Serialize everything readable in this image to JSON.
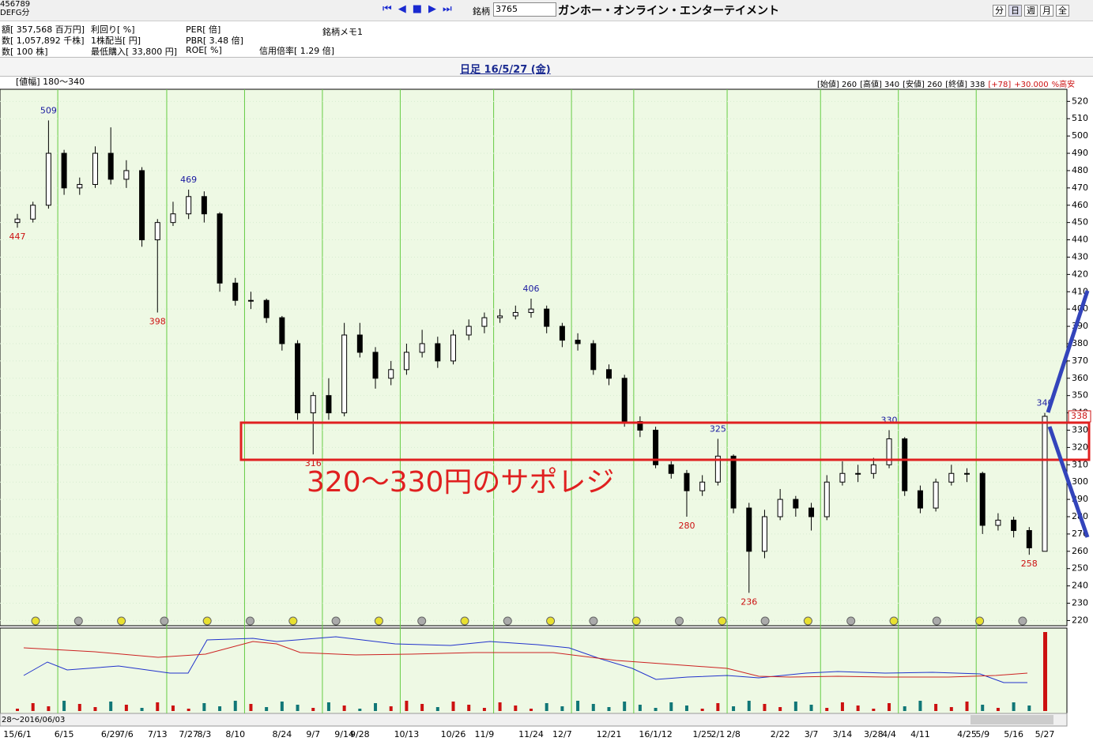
{
  "toolbar": {
    "counter": "456789",
    "counter_sub": "DEFG分",
    "symbol_label": "銘柄",
    "symbol": "3765",
    "company": "ガンホー・オンライン・エンターテイメント",
    "periods": [
      "分",
      "日",
      "週",
      "月",
      "全"
    ]
  },
  "info": {
    "rows": [
      [
        "額[ 357,568 百万円]",
        "利回り[ %]",
        "PER[ 倍]"
      ],
      [
        "数[ 1,057,892 千株]",
        "1株配当[ 円]",
        "PBR[ 3.48 倍]"
      ],
      [
        "数[ 100 株]",
        "最低購入[ 33,800 円]",
        "ROE[ %]"
      ]
    ],
    "memo": "銘柄メモ1",
    "margin_ratio": "信用倍率[ 1.29 倍]"
  },
  "chart_data": {
    "type": "candlestick",
    "title": "日足 16/5/27 (金)",
    "range_label": "[値幅] 180〜340",
    "ohlc_header": [
      "[始値] 260",
      "[高値] 340",
      "[安値] 260",
      "[終値] 338",
      "[+78]",
      "+30.000",
      "%高安"
    ],
    "annotation": "320〜330円のサポレジ",
    "scroll_label": "28〜2016/06/03",
    "ylim": [
      217,
      527
    ],
    "yticks": [
      220,
      230,
      240,
      250,
      260,
      270,
      280,
      290,
      300,
      310,
      320,
      330,
      340,
      350,
      360,
      370,
      380,
      390,
      400,
      410,
      420,
      430,
      440,
      450,
      460,
      470,
      480,
      490,
      500,
      510,
      520
    ],
    "categories": [
      "15/6/1",
      null,
      null,
      "6/15",
      null,
      null,
      "6/29",
      "7/6",
      null,
      "7/13",
      null,
      "7/27",
      "8/3",
      null,
      "8/10",
      null,
      null,
      "8/24",
      null,
      "9/7",
      null,
      "9/14",
      "9/28",
      null,
      null,
      "10/13",
      null,
      null,
      "10/26",
      null,
      "11/9",
      null,
      null,
      "11/24",
      null,
      "12/7",
      null,
      null,
      "12/21",
      null,
      null,
      "16/1/12",
      null,
      null,
      "1/25",
      "2/1",
      "2/8",
      null,
      null,
      "2/22",
      null,
      "3/7",
      null,
      "3/14",
      null,
      "3/28",
      "4/4",
      null,
      "4/11",
      null,
      null,
      "4/25",
      "5/9",
      null,
      "5/16",
      null,
      "5/27"
    ],
    "open": [
      450,
      452,
      460,
      490,
      470,
      472,
      490,
      475,
      480,
      440,
      450,
      455,
      465,
      455,
      415,
      405,
      405,
      395,
      380,
      340,
      350,
      340,
      385,
      375,
      360,
      365,
      375,
      380,
      370,
      385,
      390,
      395,
      396,
      398,
      400,
      390,
      382,
      380,
      365,
      360,
      335,
      330,
      310,
      305,
      295,
      300,
      315,
      285,
      260,
      280,
      290,
      285,
      280,
      300,
      305,
      305,
      310,
      325,
      295,
      285,
      300,
      305,
      305,
      275,
      278,
      272,
      260
    ],
    "high": [
      455,
      462,
      509,
      492,
      476,
      494,
      505,
      486,
      482,
      452,
      462,
      469,
      468,
      456,
      418,
      410,
      406,
      396,
      382,
      352,
      360,
      392,
      392,
      378,
      370,
      380,
      388,
      384,
      388,
      394,
      398,
      400,
      402,
      406,
      402,
      392,
      386,
      382,
      368,
      362,
      338,
      332,
      312,
      307,
      304,
      325,
      316,
      288,
      284,
      296,
      292,
      288,
      304,
      312,
      310,
      314,
      330,
      326,
      298,
      302,
      310,
      308,
      306,
      282,
      280,
      274,
      340
    ],
    "low": [
      447,
      450,
      458,
      466,
      466,
      470,
      472,
      470,
      436,
      398,
      448,
      452,
      450,
      410,
      402,
      400,
      392,
      376,
      336,
      316,
      336,
      338,
      372,
      354,
      356,
      362,
      372,
      366,
      368,
      382,
      386,
      392,
      394,
      395,
      386,
      378,
      376,
      362,
      356,
      332,
      326,
      308,
      302,
      280,
      292,
      298,
      282,
      236,
      256,
      278,
      280,
      272,
      278,
      298,
      300,
      302,
      308,
      292,
      282,
      283,
      298,
      300,
      270,
      272,
      268,
      258,
      260
    ],
    "close": [
      452,
      460,
      490,
      470,
      472,
      490,
      475,
      480,
      440,
      450,
      455,
      465,
      455,
      415,
      405,
      405,
      395,
      380,
      340,
      350,
      340,
      385,
      375,
      360,
      365,
      375,
      380,
      370,
      385,
      390,
      395,
      396,
      398,
      400,
      390,
      382,
      380,
      365,
      360,
      335,
      330,
      310,
      305,
      295,
      300,
      315,
      285,
      260,
      280,
      290,
      285,
      280,
      300,
      305,
      305,
      310,
      325,
      295,
      285,
      300,
      305,
      305,
      275,
      278,
      272,
      262,
      338
    ],
    "high_labels": [
      509,
      469,
      406,
      325,
      330,
      340
    ],
    "low_labels": [
      447,
      398,
      316,
      280,
      236,
      258
    ],
    "up_color": "#ffffff",
    "down_color": "#000000",
    "high_color": "#1a1aa0",
    "low_color": "#cc1111"
  }
}
